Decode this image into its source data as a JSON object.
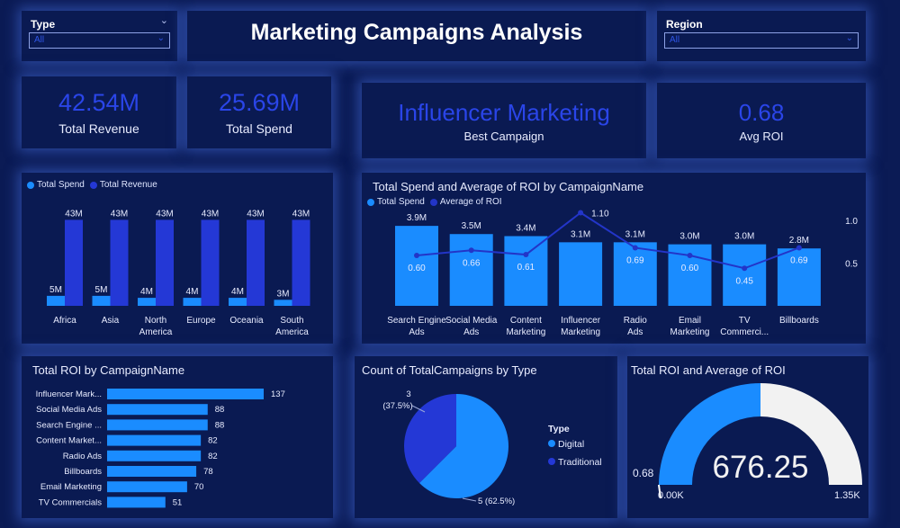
{
  "title": "Marketing Campaigns Analysis",
  "slicers": {
    "type": {
      "label": "Type",
      "value": "All"
    },
    "region": {
      "label": "Region",
      "value": "All"
    }
  },
  "kpis": {
    "revenue": {
      "value": "42.54M",
      "label": "Total Revenue"
    },
    "spend": {
      "value": "25.69M",
      "label": "Total Spend"
    },
    "best": {
      "value": "Influencer Marketing",
      "label": "Best Campaign"
    },
    "roi": {
      "value": "0.68",
      "label": "Avg ROI"
    }
  },
  "colors": {
    "spend": "#1a8cff",
    "revenue": "#2438d6",
    "roi_line": "#2335c8",
    "gauge_fill": "#1a8cff",
    "gauge_bg": "#f2f2f2"
  },
  "chart_data": [
    {
      "type": "bar",
      "title": "",
      "legend": [
        "Total Spend",
        "Total Revenue"
      ],
      "categories": [
        "Africa",
        "Asia",
        "North America",
        "Europe",
        "Oceania",
        "South America"
      ],
      "series": [
        {
          "name": "Total Spend",
          "values": [
            5,
            5,
            4,
            4,
            4,
            3
          ],
          "labels": [
            "5M",
            "5M",
            "4M",
            "4M",
            "4M",
            "3M"
          ]
        },
        {
          "name": "Total Revenue",
          "values": [
            43,
            43,
            43,
            43,
            43,
            43
          ],
          "labels": [
            "43M",
            "43M",
            "43M",
            "43M",
            "43M",
            "43M"
          ]
        }
      ]
    },
    {
      "type": "bar",
      "title": "Total Spend and Average of ROI by CampaignName",
      "legend": [
        "Total Spend",
        "Average of ROI"
      ],
      "categories": [
        "Search Engine Ads",
        "Social Media Ads",
        "Content Marketing",
        "Influencer Marketing",
        "Radio Ads",
        "Email Marketing",
        "TV Commerci...",
        "Billboards"
      ],
      "series": [
        {
          "name": "Total Spend",
          "values": [
            3.9,
            3.5,
            3.4,
            3.1,
            3.1,
            3.0,
            3.0,
            2.8
          ],
          "labels": [
            "3.9M",
            "3.5M",
            "3.4M",
            "3.1M",
            "3.1M",
            "3.0M",
            "3.0M",
            "2.8M"
          ]
        },
        {
          "name": "Average of ROI",
          "values": [
            0.6,
            0.66,
            0.61,
            1.1,
            0.69,
            0.6,
            0.45,
            0.69
          ],
          "labels": [
            "0.60",
            "0.66",
            "0.61",
            "1.10",
            "0.69",
            "0.60",
            "0.45",
            "0.69"
          ]
        }
      ],
      "y2_ticks": [
        "1.0",
        "0.5"
      ]
    },
    {
      "type": "bar",
      "title": "Total ROI by CampaignName",
      "categories": [
        "Influencer Mark...",
        "Social Media Ads",
        "Search Engine ...",
        "Content Market...",
        "Radio Ads",
        "Billboards",
        "Email Marketing",
        "TV Commercials"
      ],
      "values": [
        137,
        88,
        88,
        82,
        82,
        78,
        70,
        51
      ]
    },
    {
      "type": "pie",
      "title": "Count of TotalCampaigns by Type",
      "legend_title": "Type",
      "slices": [
        {
          "name": "Digital",
          "value": 5,
          "label": "5 (62.5%)"
        },
        {
          "name": "Traditional",
          "value": 3,
          "label_count": "3",
          "label_pct": "(37.5%)"
        }
      ]
    },
    {
      "type": "gauge",
      "title": "Total ROI and Average of ROI",
      "value": 676.25,
      "value_label": "676.25",
      "min_label": "0.00K",
      "max_label": "1.35K",
      "max": 1352.5,
      "target_label": "0.68"
    }
  ]
}
